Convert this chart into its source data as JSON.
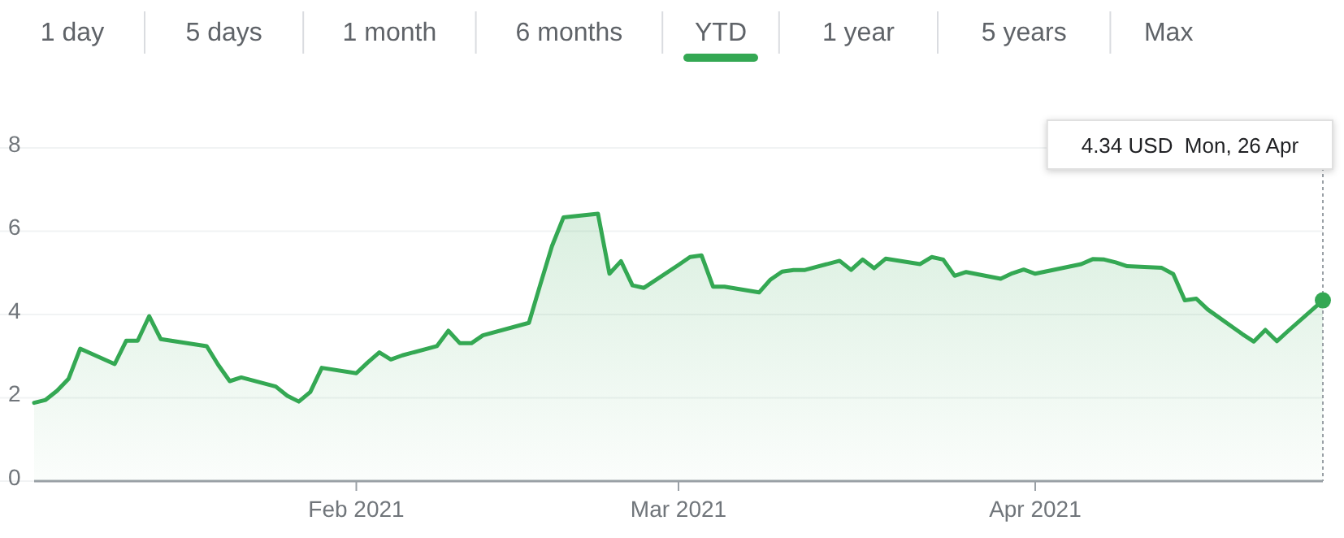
{
  "chart_data": {
    "type": "area",
    "x": [
      "2021-01-04",
      "2021-01-05",
      "2021-01-06",
      "2021-01-07",
      "2021-01-08",
      "2021-01-11",
      "2021-01-12",
      "2021-01-13",
      "2021-01-14",
      "2021-01-15",
      "2021-01-19",
      "2021-01-20",
      "2021-01-21",
      "2021-01-22",
      "2021-01-25",
      "2021-01-26",
      "2021-01-27",
      "2021-01-28",
      "2021-01-29",
      "2021-02-01",
      "2021-02-02",
      "2021-02-03",
      "2021-02-04",
      "2021-02-05",
      "2021-02-08",
      "2021-02-09",
      "2021-02-10",
      "2021-02-11",
      "2021-02-12",
      "2021-02-16",
      "2021-02-17",
      "2021-02-18",
      "2021-02-19",
      "2021-02-22",
      "2021-02-23",
      "2021-02-24",
      "2021-02-25",
      "2021-02-26",
      "2021-03-01",
      "2021-03-02",
      "2021-03-03",
      "2021-03-04",
      "2021-03-05",
      "2021-03-08",
      "2021-03-09",
      "2021-03-10",
      "2021-03-11",
      "2021-03-12",
      "2021-03-15",
      "2021-03-16",
      "2021-03-17",
      "2021-03-18",
      "2021-03-19",
      "2021-03-22",
      "2021-03-23",
      "2021-03-24",
      "2021-03-25",
      "2021-03-26",
      "2021-03-29",
      "2021-03-30",
      "2021-03-31",
      "2021-04-01",
      "2021-04-05",
      "2021-04-06",
      "2021-04-07",
      "2021-04-08",
      "2021-04-09",
      "2021-04-12",
      "2021-04-13",
      "2021-04-14",
      "2021-04-15",
      "2021-04-16",
      "2021-04-19",
      "2021-04-20",
      "2021-04-21",
      "2021-04-22",
      "2021-04-23",
      "2021-04-26"
    ],
    "series": [
      {
        "color": "#34a853",
        "values": [
          1.88,
          1.95,
          2.17,
          2.46,
          3.18,
          2.81,
          3.37,
          3.37,
          3.96,
          3.41,
          3.24,
          2.79,
          2.4,
          2.49,
          2.27,
          2.05,
          1.91,
          2.14,
          2.72,
          2.59,
          2.85,
          3.09,
          2.92,
          3.02,
          3.24,
          3.61,
          3.31,
          3.31,
          3.5,
          3.8,
          4.73,
          5.64,
          6.33,
          6.42,
          4.98,
          5.28,
          4.7,
          4.64,
          5.19,
          5.38,
          5.42,
          4.67,
          4.67,
          4.53,
          4.84,
          5.03,
          5.07,
          5.07,
          5.29,
          5.07,
          5.32,
          5.11,
          5.34,
          5.21,
          5.38,
          5.32,
          4.93,
          5.02,
          4.86,
          4.99,
          5.08,
          4.98,
          5.21,
          5.33,
          5.32,
          5.25,
          5.16,
          5.12,
          4.97,
          4.34,
          4.38,
          4.12,
          3.53,
          3.35,
          3.63,
          3.36,
          3.61,
          4.34
        ]
      }
    ],
    "xlim": [
      "2021-01-04",
      "2021-04-26"
    ],
    "xticks": [
      {
        "value": "2021-02-01",
        "label": "Feb 2021"
      },
      {
        "value": "2021-03-01",
        "label": "Mar 2021"
      },
      {
        "value": "2021-04-01",
        "label": "Apr 2021"
      }
    ],
    "ylim": [
      0,
      8
    ],
    "yticks": [
      0,
      2,
      4,
      6,
      8
    ],
    "grid": "y",
    "marker": "none",
    "line_style": "solid",
    "annotations": [
      "1 day",
      "5 days",
      "1 month",
      "6 months",
      "YTD",
      "1 year",
      "5 years",
      "Max",
      "4.34 USD  Mon, 26 Apr"
    ]
  }
}
